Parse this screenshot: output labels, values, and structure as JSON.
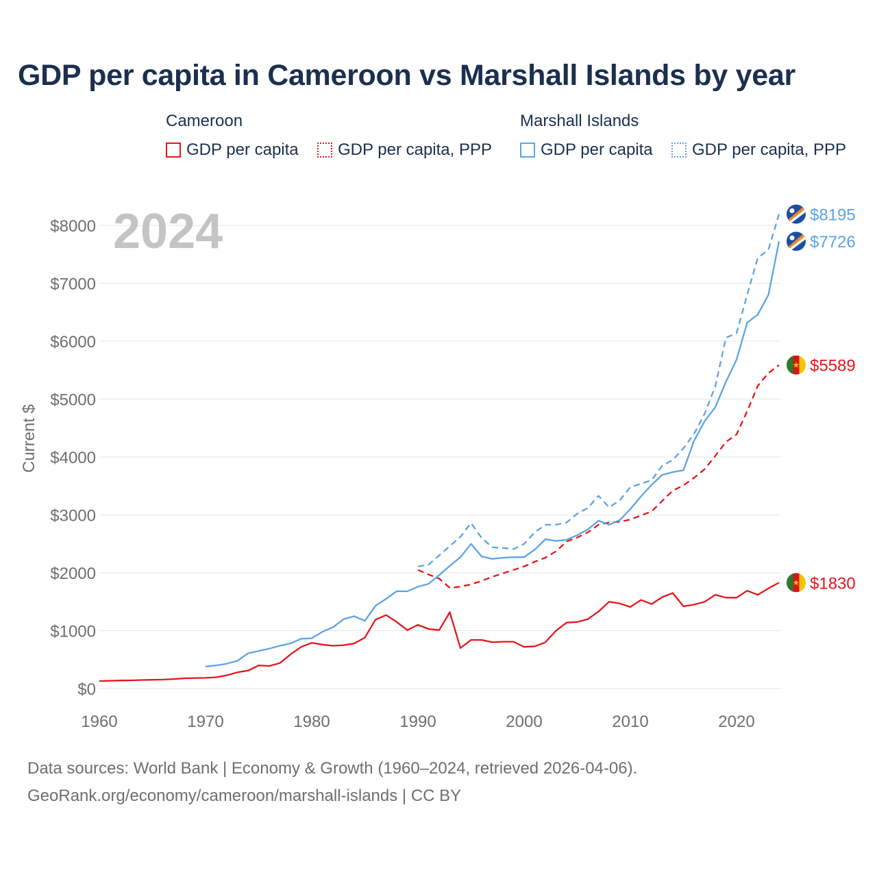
{
  "title": "GDP per capita in Cameroon vs Marshall Islands by year",
  "legend": {
    "groups": [
      {
        "name": "Cameroon",
        "items": [
          "GDP per capita",
          "GDP per capita, PPP"
        ]
      },
      {
        "name": "Marshall Islands",
        "items": [
          "GDP per capita",
          "GDP per capita, PPP"
        ]
      }
    ]
  },
  "year_watermark": "2024",
  "sources": {
    "line1": "Data sources: World Bank | Economy & Growth (1960–2024, retrieved 2026-04-06).",
    "line2": "GeoRank.org/economy/cameroon/marshall-islands | CC BY"
  },
  "colors": {
    "cameroon": "#e8131b",
    "marshall": "#5ba3e6",
    "grid": "#e6e6e6",
    "axis_text": "#6e6e6e"
  },
  "chart_data": {
    "type": "line",
    "title": "GDP per capita in Cameroon vs Marshall Islands by year",
    "xlabel": "",
    "ylabel": "Current $",
    "xlim": [
      1960,
      2024
    ],
    "ylim": [
      0,
      8000
    ],
    "x_ticks": [
      1960,
      1970,
      1980,
      1990,
      2000,
      2010,
      2020
    ],
    "x_tick_labels": [
      "1960",
      "1970",
      "1980",
      "1990",
      "2000",
      "2010",
      "2020"
    ],
    "y_ticks": [
      0,
      1000,
      2000,
      3000,
      4000,
      5000,
      6000,
      7000,
      8000
    ],
    "y_tick_labels": [
      "$0",
      "$1000",
      "$2000",
      "$3000",
      "$4000",
      "$5000",
      "$6000",
      "$7000",
      "$8000"
    ],
    "grid": true,
    "end_labels": [
      "$8195",
      "$7726",
      "$5589",
      "$1830"
    ],
    "series": [
      {
        "name": "Cameroon GDP per capita",
        "country": "Cameroon",
        "style": "solid",
        "x": [
          1960,
          1961,
          1962,
          1963,
          1964,
          1965,
          1966,
          1967,
          1968,
          1969,
          1970,
          1971,
          1972,
          1973,
          1974,
          1975,
          1976,
          1977,
          1978,
          1979,
          1980,
          1981,
          1982,
          1983,
          1984,
          1985,
          1986,
          1987,
          1988,
          1989,
          1990,
          1991,
          1992,
          1993,
          1994,
          1995,
          1996,
          1997,
          1998,
          1999,
          2000,
          2001,
          2002,
          2003,
          2004,
          2005,
          2006,
          2007,
          2008,
          2009,
          2010,
          2011,
          2012,
          2013,
          2014,
          2015,
          2016,
          2017,
          2018,
          2019,
          2020,
          2021,
          2022,
          2023,
          2024
        ],
        "values": [
          130,
          135,
          140,
          142,
          148,
          152,
          155,
          165,
          178,
          182,
          185,
          195,
          230,
          280,
          310,
          400,
          390,
          440,
          590,
          720,
          790,
          760,
          740,
          750,
          780,
          880,
          1190,
          1270,
          1150,
          1010,
          1100,
          1030,
          1010,
          1320,
          700,
          840,
          840,
          800,
          810,
          810,
          720,
          730,
          800,
          1000,
          1140,
          1150,
          1200,
          1330,
          1500,
          1470,
          1410,
          1530,
          1460,
          1580,
          1650,
          1420,
          1450,
          1500,
          1620,
          1570,
          1570,
          1690,
          1620,
          1730,
          1830
        ]
      },
      {
        "name": "Cameroon GDP per capita, PPP",
        "country": "Cameroon",
        "style": "dashed",
        "x": [
          1990,
          1991,
          1992,
          1993,
          1994,
          1995,
          1996,
          1997,
          1998,
          1999,
          2000,
          2001,
          2002,
          2003,
          2004,
          2005,
          2006,
          2007,
          2008,
          2009,
          2010,
          2011,
          2012,
          2013,
          2014,
          2015,
          2016,
          2017,
          2018,
          2019,
          2020,
          2021,
          2022,
          2023,
          2024
        ],
        "values": [
          2050,
          1970,
          1900,
          1740,
          1760,
          1800,
          1860,
          1930,
          1990,
          2050,
          2110,
          2190,
          2260,
          2370,
          2540,
          2610,
          2700,
          2830,
          2870,
          2880,
          2920,
          2990,
          3060,
          3240,
          3420,
          3510,
          3640,
          3790,
          4020,
          4260,
          4390,
          4790,
          5230,
          5450,
          5589
        ]
      },
      {
        "name": "Marshall Islands GDP per capita",
        "country": "Marshall Islands",
        "style": "solid",
        "x": [
          1970,
          1971,
          1972,
          1973,
          1974,
          1975,
          1976,
          1977,
          1978,
          1979,
          1980,
          1981,
          1982,
          1983,
          1984,
          1985,
          1986,
          1987,
          1988,
          1989,
          1990,
          1991,
          1992,
          1993,
          1994,
          1995,
          1996,
          1997,
          1998,
          1999,
          2000,
          2001,
          2002,
          2003,
          2004,
          2005,
          2006,
          2007,
          2008,
          2009,
          2010,
          2011,
          2012,
          2013,
          2014,
          2015,
          2016,
          2017,
          2018,
          2019,
          2020,
          2021,
          2022,
          2023,
          2024
        ],
        "values": [
          380,
          400,
          430,
          480,
          610,
          650,
          690,
          740,
          780,
          860,
          870,
          980,
          1060,
          1200,
          1250,
          1170,
          1430,
          1550,
          1680,
          1680,
          1760,
          1810,
          1960,
          2120,
          2270,
          2500,
          2280,
          2240,
          2260,
          2270,
          2270,
          2400,
          2580,
          2550,
          2570,
          2650,
          2750,
          2900,
          2830,
          2910,
          3100,
          3320,
          3520,
          3690,
          3740,
          3770,
          4280,
          4620,
          4860,
          5300,
          5680,
          6320,
          6460,
          6800,
          7726
        ]
      },
      {
        "name": "Marshall Islands GDP per capita, PPP",
        "country": "Marshall Islands",
        "style": "dashed",
        "x": [
          1990,
          1991,
          1992,
          1993,
          1994,
          1995,
          1996,
          1997,
          1998,
          1999,
          2000,
          2001,
          2002,
          2003,
          2004,
          2005,
          2006,
          2007,
          2008,
          2009,
          2010,
          2011,
          2012,
          2013,
          2014,
          2015,
          2016,
          2017,
          2018,
          2019,
          2020,
          2021,
          2022,
          2023,
          2024
        ],
        "values": [
          2110,
          2140,
          2300,
          2460,
          2620,
          2860,
          2600,
          2440,
          2430,
          2410,
          2500,
          2700,
          2830,
          2830,
          2870,
          3020,
          3120,
          3330,
          3130,
          3250,
          3480,
          3540,
          3600,
          3850,
          3950,
          4150,
          4400,
          4750,
          5220,
          6060,
          6140,
          6800,
          7440,
          7580,
          8195
        ]
      }
    ]
  }
}
